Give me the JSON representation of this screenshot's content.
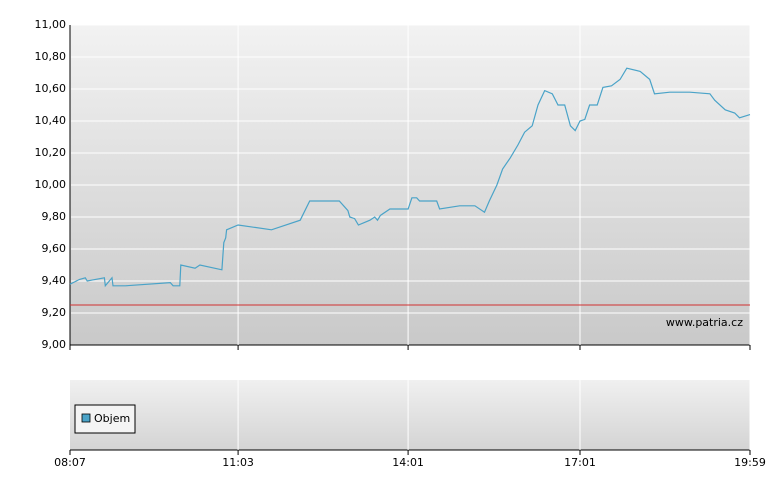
{
  "chart_data": {
    "type": "line",
    "x": [
      "08:07",
      "08:17",
      "08:23",
      "08:25",
      "08:43",
      "08:44",
      "08:51",
      "08:52",
      "09:05",
      "09:52",
      "09:55",
      "10:02",
      "10:03",
      "10:18",
      "10:23",
      "10:46",
      "10:48",
      "10:50",
      "10:51",
      "11:03",
      "11:38",
      "12:08",
      "12:18",
      "12:49",
      "12:58",
      "13:00",
      "13:05",
      "13:09",
      "13:17",
      "13:21",
      "13:26",
      "13:29",
      "13:32",
      "13:42",
      "14:01",
      "14:05",
      "14:10",
      "14:13",
      "14:31",
      "14:34",
      "14:55",
      "15:11",
      "15:21",
      "15:26",
      "15:34",
      "15:40",
      "15:48",
      "15:56",
      "16:03",
      "16:11",
      "16:17",
      "16:24",
      "16:32",
      "16:38",
      "16:45",
      "16:51",
      "16:56",
      "17:01",
      "17:06",
      "17:11",
      "17:19",
      "17:25",
      "17:34",
      "17:43",
      "17:50",
      "18:04",
      "18:14",
      "18:19",
      "18:35",
      "18:56",
      "19:17",
      "19:22",
      "19:33",
      "19:43",
      "19:48",
      "19:59"
    ],
    "series": [
      {
        "color": "#4aa3c8",
        "values": [
          9.38,
          9.41,
          9.42,
          9.4,
          9.42,
          9.37,
          9.42,
          9.37,
          9.37,
          9.39,
          9.37,
          9.37,
          9.5,
          9.48,
          9.5,
          9.47,
          9.64,
          9.67,
          9.72,
          9.75,
          9.72,
          9.78,
          9.9,
          9.9,
          9.84,
          9.8,
          9.79,
          9.75,
          9.77,
          9.78,
          9.8,
          9.78,
          9.81,
          9.85,
          9.85,
          9.92,
          9.92,
          9.9,
          9.9,
          9.85,
          9.87,
          9.87,
          9.83,
          9.9,
          10.0,
          10.1,
          10.17,
          10.25,
          10.33,
          10.37,
          10.5,
          10.59,
          10.57,
          10.5,
          10.5,
          10.37,
          10.34,
          10.4,
          10.41,
          10.5,
          10.5,
          10.61,
          10.62,
          10.66,
          10.73,
          10.71,
          10.66,
          10.57,
          10.58,
          10.58,
          10.57,
          10.53,
          10.47,
          10.45,
          10.42,
          10.44
        ]
      }
    ],
    "xlim": [
      "08:07",
      "19:59"
    ],
    "xticks": [
      "08:07",
      "11:03",
      "14:01",
      "17:01",
      "19:59"
    ],
    "ylim": [
      9,
      11
    ],
    "yticks": [
      {
        "value": 9,
        "label": "9,00"
      },
      {
        "value": 9.2,
        "label": "9,20"
      },
      {
        "value": 9.4,
        "label": "9,40"
      },
      {
        "value": 9.6,
        "label": "9,60"
      },
      {
        "value": 9.8,
        "label": "9,80"
      },
      {
        "value": 10,
        "label": "10,00"
      },
      {
        "value": 10.2,
        "label": "10,20"
      },
      {
        "value": 10.4,
        "label": "10,40"
      },
      {
        "value": 10.6,
        "label": "10,60"
      },
      {
        "value": 10.8,
        "label": "10,80"
      },
      {
        "value": 11,
        "label": "11,00"
      }
    ],
    "reference_line": {
      "value": 9.25,
      "color": "#d03030"
    },
    "grid": true,
    "watermark": "www.patria.cz",
    "volume_legend": {
      "name": "Objem",
      "color": "#4aa3c8"
    }
  }
}
